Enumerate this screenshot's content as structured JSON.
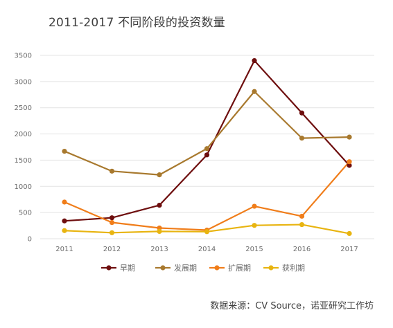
{
  "chart_data": {
    "type": "line",
    "title": "2011-2017 不同阶段的投资数量",
    "xlabel": "",
    "ylabel": "",
    "categories": [
      "2011",
      "2012",
      "2013",
      "2014",
      "2015",
      "2016",
      "2017"
    ],
    "ylim": [
      0,
      3500
    ],
    "yticks": [
      0,
      500,
      1000,
      1500,
      2000,
      2500,
      3000,
      3500
    ],
    "grid": true,
    "legend_position": "bottom",
    "series": [
      {
        "name": "早期",
        "color": "#6e0e0e",
        "values": [
          340,
          400,
          640,
          1600,
          3400,
          2400,
          1400
        ]
      },
      {
        "name": "发展期",
        "color": "#a8792e",
        "values": [
          1670,
          1290,
          1220,
          1720,
          2810,
          1920,
          1940
        ]
      },
      {
        "name": "扩展期",
        "color": "#f07d1a",
        "values": [
          700,
          310,
          205,
          165,
          620,
          430,
          1470
        ]
      },
      {
        "name": "获利期",
        "color": "#e8b410",
        "values": [
          155,
          115,
          140,
          135,
          255,
          270,
          100
        ]
      }
    ]
  },
  "footer": {
    "source": "数据来源：CV Source，诺亚研究工作坊"
  }
}
